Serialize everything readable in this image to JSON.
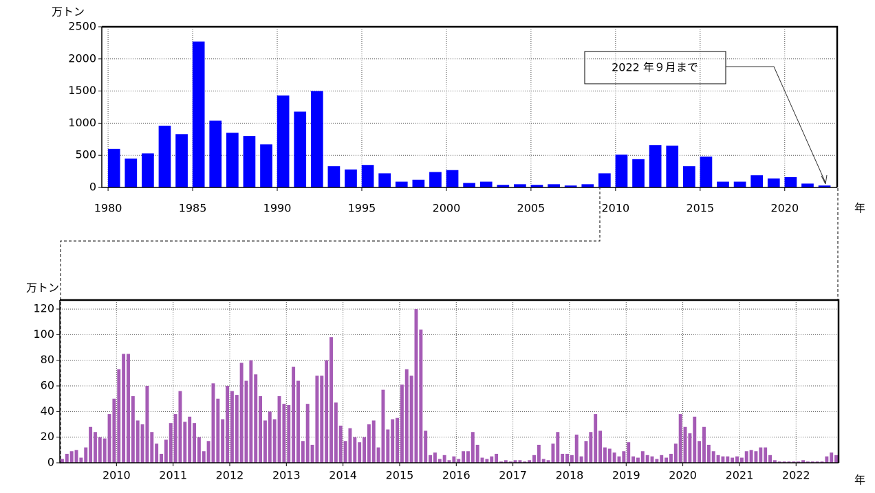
{
  "chart_data": [
    {
      "type": "bar",
      "ylabel": "万トン",
      "xlabel": "年",
      "color": "#0000ff",
      "grid": true,
      "annotation": "2022 年９月まで",
      "x": [
        1980,
        1981,
        1982,
        1983,
        1984,
        1985,
        1986,
        1987,
        1988,
        1989,
        1990,
        1991,
        1992,
        1993,
        1994,
        1995,
        1996,
        1997,
        1998,
        1999,
        2000,
        2001,
        2002,
        2003,
        2004,
        2005,
        2006,
        2007,
        2008,
        2009,
        2010,
        2011,
        2012,
        2013,
        2014,
        2015,
        2016,
        2017,
        2018,
        2019,
        2020,
        2021,
        2022
      ],
      "values": [
        600,
        450,
        530,
        960,
        830,
        2270,
        1040,
        850,
        800,
        670,
        1430,
        1180,
        1500,
        330,
        280,
        350,
        220,
        90,
        120,
        240,
        270,
        70,
        90,
        40,
        50,
        40,
        50,
        30,
        50,
        220,
        510,
        440,
        660,
        650,
        330,
        480,
        90,
        90,
        190,
        140,
        160,
        60,
        30
      ],
      "xlim": [
        1979.63,
        2023.1
      ],
      "xticks": [
        1980,
        1985,
        1990,
        1995,
        2000,
        2005,
        2010,
        2015,
        2020
      ],
      "ylim": [
        0,
        2500
      ],
      "yticks": [
        0,
        500,
        1000,
        1500,
        2000,
        2500
      ]
    },
    {
      "type": "bar",
      "ylabel": "万トン",
      "xlabel": "年",
      "color": "#a55bb5",
      "grid": true,
      "values": [
        3,
        7,
        9,
        10,
        4,
        12,
        28,
        24,
        20,
        19,
        38,
        50,
        73,
        85,
        85,
        52,
        33,
        30,
        60,
        24,
        15,
        7,
        18,
        31,
        38,
        56,
        32,
        36,
        31,
        20,
        9,
        17,
        62,
        50,
        34,
        60,
        56,
        53,
        78,
        64,
        80,
        69,
        52,
        33,
        40,
        34,
        52,
        46,
        45,
        75,
        64,
        17,
        46,
        14,
        68,
        68,
        80,
        98,
        47,
        29,
        17,
        27,
        20,
        16,
        20,
        30,
        33,
        12,
        57,
        26,
        34,
        35,
        61,
        73,
        68,
        120,
        104,
        25,
        6,
        8,
        3,
        6,
        2,
        5,
        3,
        9,
        9,
        24,
        14,
        4,
        3,
        5,
        7,
        1,
        2,
        1,
        2,
        2,
        1,
        2,
        6,
        14,
        3,
        2,
        15,
        24,
        7,
        7,
        6,
        22,
        5,
        17,
        24,
        38,
        25,
        12,
        11,
        8,
        5,
        9,
        16,
        5,
        4,
        9,
        6,
        5,
        3,
        6,
        4,
        7,
        15,
        38,
        28,
        23,
        36,
        17,
        28,
        14,
        9,
        6,
        5,
        5,
        4,
        5,
        4,
        9,
        10,
        9,
        12,
        12,
        6,
        2,
        1,
        1,
        1,
        1,
        1,
        2,
        1,
        1,
        1,
        1,
        5,
        8,
        6
      ],
      "xlim": [
        2009,
        2022.75
      ],
      "xticks": [
        2010,
        2011,
        2012,
        2013,
        2014,
        2015,
        2016,
        2017,
        2018,
        2019,
        2020,
        2021,
        2022
      ],
      "ylim": [
        0,
        127
      ],
      "yticks": [
        0,
        20,
        40,
        60,
        80,
        100,
        120
      ]
    }
  ]
}
